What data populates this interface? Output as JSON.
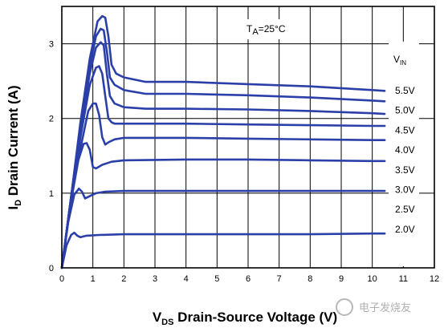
{
  "chart_data": {
    "type": "line",
    "xlabel_main": "V",
    "xlabel_sub": "DS",
    "xlabel_rest": " Drain-Source Voltage (V)",
    "ylabel_main": "I",
    "ylabel_sub": "D",
    "ylabel_rest": " Drain Current (A)",
    "xlim": [
      0,
      12
    ],
    "ylim": [
      0,
      3.5
    ],
    "xticks": [
      "0",
      "1",
      "2",
      "3",
      "4",
      "5",
      "6",
      "7",
      "8",
      "9",
      "10",
      "11",
      "12"
    ],
    "yticks": [
      "0",
      "1",
      "2",
      "3"
    ],
    "grid": true,
    "annotation_main": "T",
    "annotation_sub": "A",
    "annotation_rest": "=25°C",
    "legend_title_main": "V",
    "legend_title_sub": "IN",
    "series_color": "#2b3fa8",
    "series": [
      {
        "name": "5.5V",
        "x": [
          0,
          0.3,
          0.6,
          0.9,
          1.15,
          1.3,
          1.4,
          1.5,
          1.6,
          1.75,
          2.0,
          2.7,
          4,
          6,
          8,
          10,
          10.4
        ],
        "y": [
          0,
          0.95,
          1.95,
          2.8,
          3.3,
          3.37,
          3.35,
          3.1,
          2.72,
          2.6,
          2.55,
          2.49,
          2.49,
          2.46,
          2.43,
          2.38,
          2.37
        ]
      },
      {
        "name": "5.0V",
        "x": [
          0,
          0.3,
          0.6,
          0.9,
          1.1,
          1.25,
          1.35,
          1.45,
          1.55,
          1.7,
          2.0,
          2.7,
          4,
          6,
          8,
          10,
          10.4
        ],
        "y": [
          0,
          0.95,
          1.9,
          2.7,
          3.1,
          3.2,
          3.18,
          2.9,
          2.55,
          2.45,
          2.38,
          2.33,
          2.33,
          2.31,
          2.28,
          2.24,
          2.23
        ]
      },
      {
        "name": "4.5V",
        "x": [
          0,
          0.3,
          0.6,
          0.9,
          1.1,
          1.25,
          1.35,
          1.45,
          1.55,
          1.7,
          2.0,
          2.7,
          4,
          6,
          8,
          10,
          10.4
        ],
        "y": [
          0,
          0.95,
          1.85,
          2.6,
          2.95,
          3.02,
          2.98,
          2.6,
          2.3,
          2.2,
          2.15,
          2.13,
          2.13,
          2.12,
          2.1,
          2.07,
          2.06
        ]
      },
      {
        "name": "4.0V",
        "x": [
          0,
          0.3,
          0.6,
          0.9,
          1.1,
          1.2,
          1.3,
          1.4,
          1.5,
          1.6,
          1.7,
          2.0,
          4,
          6,
          8,
          10,
          10.4
        ],
        "y": [
          0,
          0.95,
          1.75,
          2.45,
          2.68,
          2.7,
          2.6,
          2.3,
          2.0,
          1.95,
          1.93,
          1.93,
          1.93,
          1.92,
          1.91,
          1.9,
          1.9
        ]
      },
      {
        "name": "3.5V",
        "x": [
          0,
          0.3,
          0.6,
          0.85,
          1.0,
          1.1,
          1.2,
          1.3,
          1.4,
          1.5,
          1.7,
          2.0,
          4,
          6,
          8,
          10,
          10.4
        ],
        "y": [
          0,
          0.9,
          1.6,
          2.1,
          2.2,
          2.2,
          2.05,
          1.75,
          1.65,
          1.68,
          1.72,
          1.74,
          1.74,
          1.73,
          1.72,
          1.71,
          1.71
        ]
      },
      {
        "name": "3.0V",
        "x": [
          0,
          0.25,
          0.5,
          0.7,
          0.8,
          0.9,
          1.0,
          1.1,
          1.3,
          1.6,
          2.0,
          4,
          6,
          8,
          10,
          10.4
        ],
        "y": [
          0,
          0.8,
          1.4,
          1.66,
          1.67,
          1.58,
          1.35,
          1.33,
          1.38,
          1.42,
          1.44,
          1.45,
          1.45,
          1.44,
          1.43,
          1.43
        ]
      },
      {
        "name": "2.5V",
        "x": [
          0,
          0.2,
          0.4,
          0.55,
          0.65,
          0.75,
          0.9,
          1.1,
          1.4,
          2.0,
          4,
          6,
          8,
          10,
          10.4
        ],
        "y": [
          0,
          0.6,
          0.98,
          1.06,
          1.02,
          0.93,
          0.96,
          1.0,
          1.02,
          1.03,
          1.03,
          1.03,
          1.03,
          1.03,
          1.03
        ]
      },
      {
        "name": "2.0V",
        "x": [
          0,
          0.15,
          0.3,
          0.4,
          0.5,
          0.6,
          0.8,
          1.2,
          2.0,
          4,
          6,
          8,
          10,
          10.4
        ],
        "y": [
          0,
          0.3,
          0.44,
          0.47,
          0.43,
          0.41,
          0.43,
          0.44,
          0.45,
          0.45,
          0.45,
          0.45,
          0.46,
          0.46
        ]
      }
    ]
  },
  "watermark": "电子发烧友"
}
